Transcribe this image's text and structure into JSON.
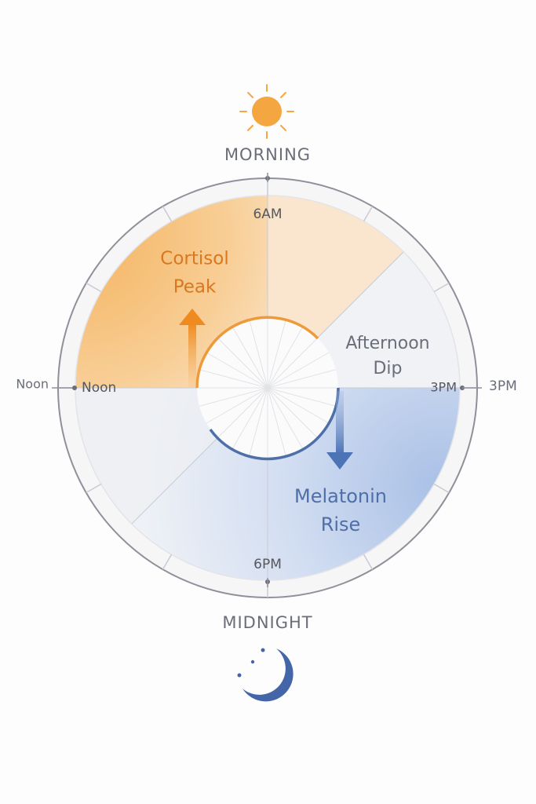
{
  "labels": {
    "top": "MORNING",
    "bottom": "MIDNIGHT"
  },
  "clock": {
    "top": "6AM",
    "left_outer": "Noon",
    "left_inner": "Noon",
    "right_inner": "3PM",
    "right_outer": "3PM",
    "bottom": "6PM"
  },
  "annotations": {
    "cortisol": [
      "Cortisol",
      "Peak"
    ],
    "afternoon": [
      "Afternoon",
      "Dip"
    ],
    "melatonin": [
      "Melatonin",
      "Rise"
    ]
  }
}
